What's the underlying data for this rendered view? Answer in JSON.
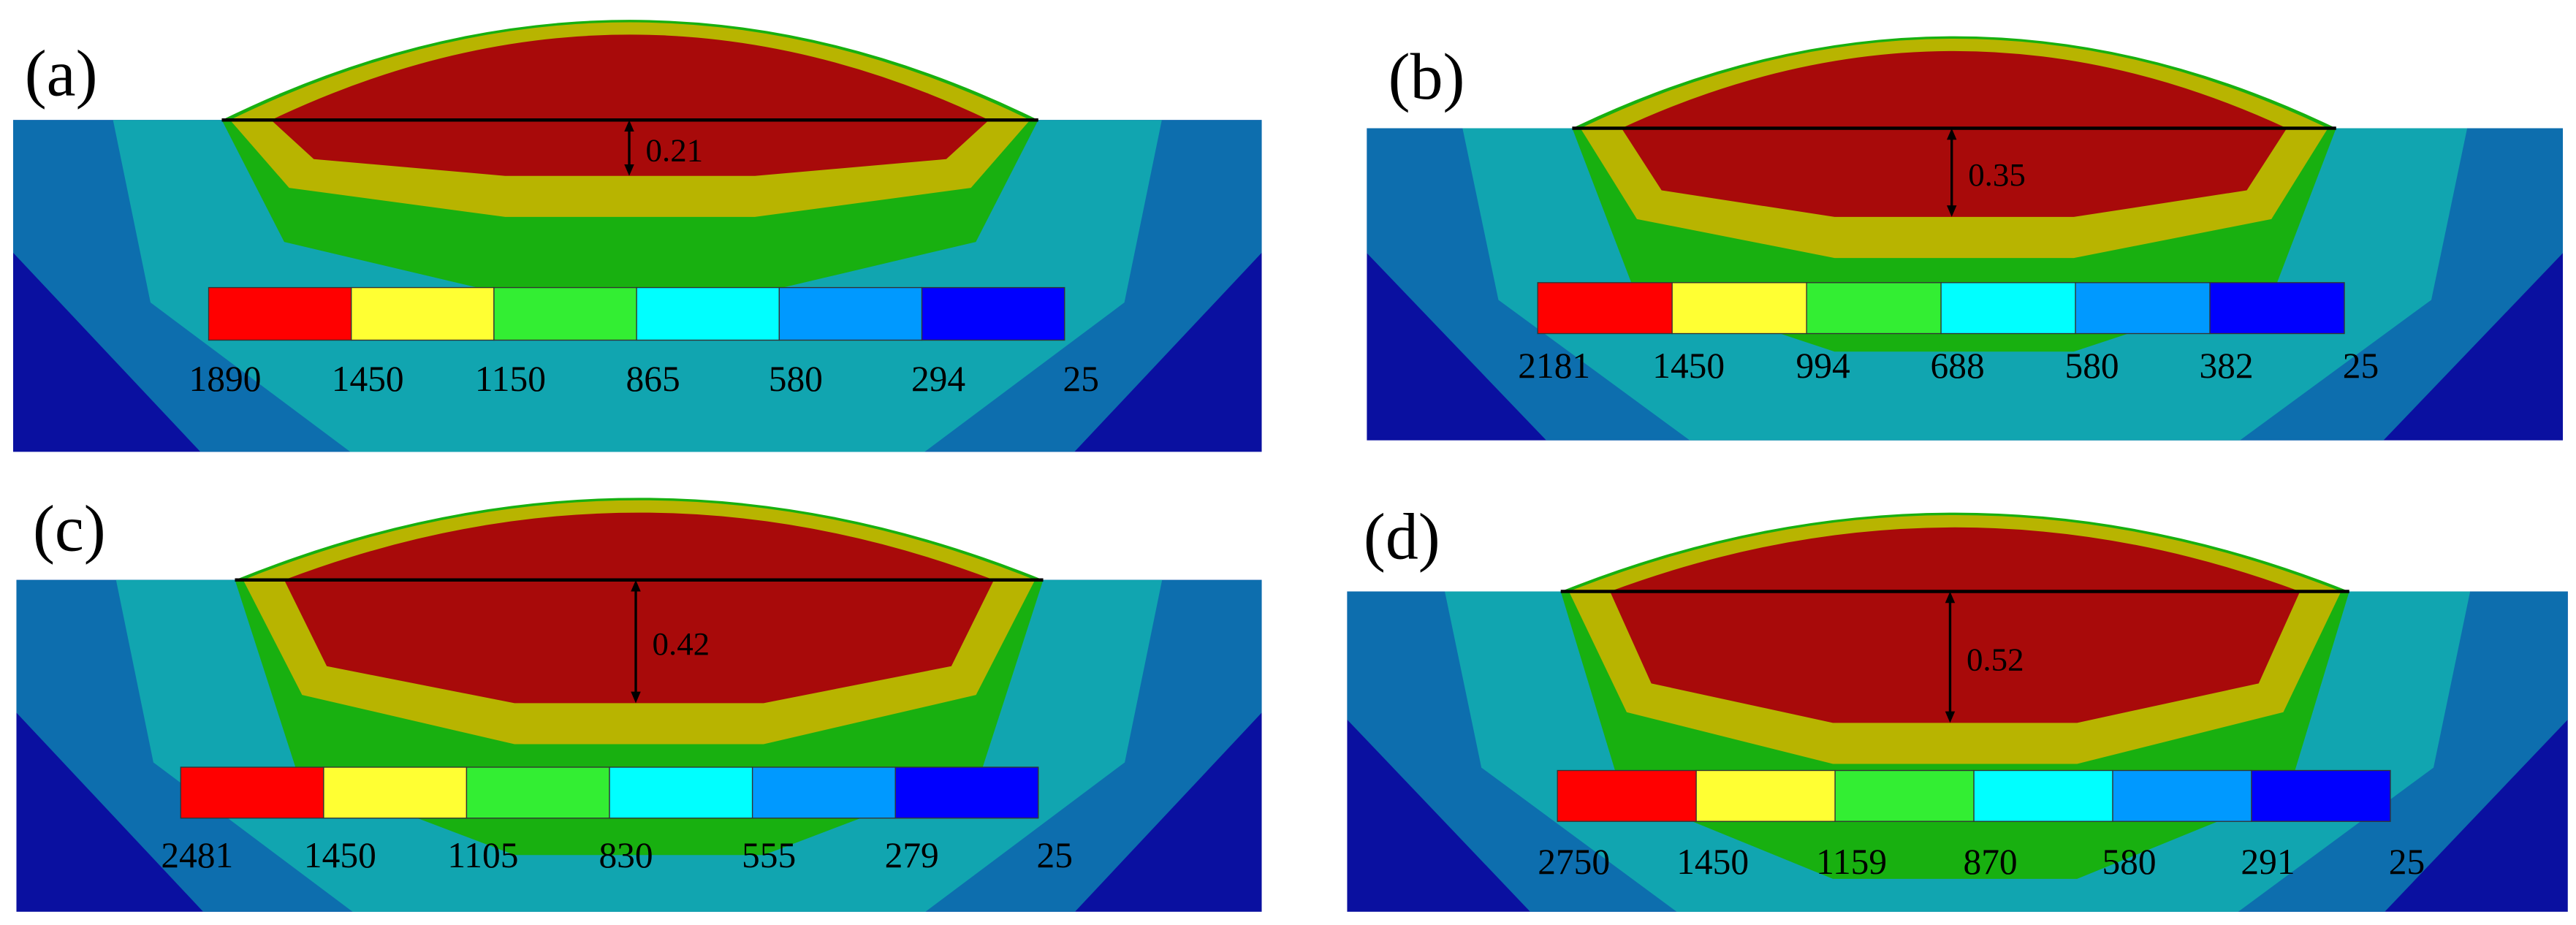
{
  "panels": [
    {
      "label": "(a)",
      "depth": "0.21",
      "legend": [
        "1890",
        "1450",
        "1150",
        "865",
        "580",
        "294",
        "25"
      ]
    },
    {
      "label": "(b)",
      "depth": "0.35",
      "legend": [
        "2181",
        "1450",
        "994",
        "688",
        "580",
        "382",
        "25"
      ]
    },
    {
      "label": "(c)",
      "depth": "0.42",
      "legend": [
        "2481",
        "1450",
        "1105",
        "830",
        "555",
        "279",
        "25"
      ]
    },
    {
      "label": "(d)",
      "depth": "0.52",
      "legend": [
        "2750",
        "1450",
        "1159",
        "870",
        "580",
        "291",
        "25"
      ]
    }
  ]
}
